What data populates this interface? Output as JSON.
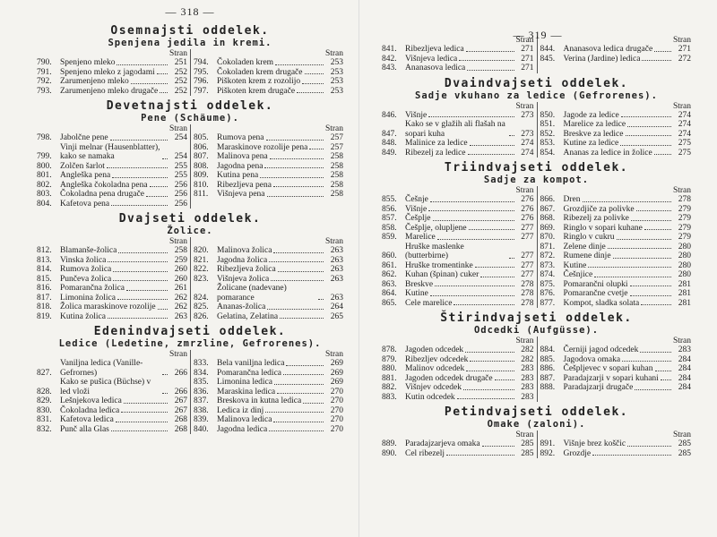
{
  "pages": [
    {
      "header": "— 318 —",
      "sections": [
        {
          "title": "Osemnajsti oddelek.",
          "subtitle": "Spenjena jedila in kremi.",
          "columns": [
            {
              "header": "Stran",
              "entries": [
                {
                  "num": "790.",
                  "name": "Spenjeno mleko",
                  "page": 251
                },
                {
                  "num": "791.",
                  "name": "Spenjeno mleko z jagodami",
                  "page": 252
                },
                {
                  "num": "792.",
                  "name": "Zarumenjeno mleko",
                  "page": 252
                },
                {
                  "num": "793.",
                  "name": "Zarumenjeno mleko drugače",
                  "page": 252
                }
              ]
            },
            {
              "header": "Stran",
              "entries": [
                {
                  "num": "794.",
                  "name": "Čokoladen krem",
                  "page": 253
                },
                {
                  "num": "795.",
                  "name": "Čokoladen krem drugače",
                  "page": 253
                },
                {
                  "num": "796.",
                  "name": "Piškoten krem z rozolijo",
                  "page": 253
                },
                {
                  "num": "797.",
                  "name": "Piškoten krem drugače",
                  "page": 253
                }
              ]
            }
          ]
        },
        {
          "title": "Devetnajsti oddelek.",
          "subtitle": "Pene (Schäume).",
          "columns": [
            {
              "header": "Stran",
              "entries": [
                {
                  "num": "798.",
                  "name": "Jabolčne pene",
                  "page": 254
                },
                {
                  "num": "799.",
                  "name": "Vinji melnar (Hausenblatter), kako se namaka",
                  "page": 254
                },
                {
                  "num": "800.",
                  "name": "Zolčen šarlot",
                  "page": 255
                },
                {
                  "num": "801.",
                  "name": "Angleška pena",
                  "page": 255
                },
                {
                  "num": "802.",
                  "name": "Angleška čokoladna pena",
                  "page": 256
                },
                {
                  "num": "803.",
                  "name": "Čokoladna pena drugače",
                  "page": 256
                },
                {
                  "num": "804.",
                  "name": "Kafetova pena",
                  "page": 256
                }
              ]
            },
            {
              "header": "Stran",
              "entries": [
                {
                  "num": "805.",
                  "name": "Rumova pena",
                  "page": 257
                },
                {
                  "num": "806.",
                  "name": "Maraskinove rozolije pena",
                  "page": 257
                },
                {
                  "num": "807.",
                  "name": "Malinova pena",
                  "page": 258
                },
                {
                  "num": "808.",
                  "name": "Jagodna pena",
                  "page": 258
                },
                {
                  "num": "809.",
                  "name": "Kutina pena",
                  "page": 258
                },
                {
                  "num": "810.",
                  "name": "Ribezljeva pena",
                  "page": 258
                },
                {
                  "num": "811.",
                  "name": "Višnjeva pena",
                  "page": 258
                }
              ]
            }
          ]
        },
        {
          "title": "Dvajseti oddelek.",
          "subtitle": "Žolice.",
          "columns": [
            {
              "header": "Stran",
              "entries": [
                {
                  "num": "812.",
                  "name": "Blamanše-žolica",
                  "page": 258
                },
                {
                  "num": "813.",
                  "name": "Vinska žolica",
                  "page": 259
                },
                {
                  "num": "814.",
                  "name": "Rumova žolica",
                  "page": 260
                },
                {
                  "num": "815.",
                  "name": "Punčeva žolica",
                  "page": 260
                },
                {
                  "num": "816.",
                  "name": "Pomarančna žolica",
                  "page": 261
                },
                {
                  "num": "817.",
                  "name": "Limonina žolica",
                  "page": 262
                },
                {
                  "num": "818.",
                  "name": "Žolica maraskinove rozolije",
                  "page": 262
                },
                {
                  "num": "819.",
                  "name": "Kutina žolica",
                  "page": 263
                }
              ]
            },
            {
              "header": "Stran",
              "entries": [
                {
                  "num": "820.",
                  "name": "Malinova žolica",
                  "page": 263
                },
                {
                  "num": "821.",
                  "name": "Jagodna žolica",
                  "page": 263
                },
                {
                  "num": "822.",
                  "name": "Ribezljeva žolica",
                  "page": 263
                },
                {
                  "num": "823.",
                  "name": "Višnjeva žolica",
                  "page": 263
                },
                {
                  "num": "824.",
                  "name": "Žolicane (nadevane) pomarance",
                  "page": 263
                },
                {
                  "num": "825.",
                  "name": "Ananas-žolica",
                  "page": 264
                },
                {
                  "num": "826.",
                  "name": "Gelatina, Zelatina",
                  "page": 265
                }
              ]
            }
          ]
        },
        {
          "title": "Edenindvajseti oddelek.",
          "subtitle": "Ledice (Ledetine, zmrzline, Gefrorenes).",
          "columns": [
            {
              "header": "Stran",
              "entries": [
                {
                  "num": "827.",
                  "name": "Vaniljna ledica (Vanille-Gefrornes)",
                  "page": 266
                },
                {
                  "num": "828.",
                  "name": "Kako se pušica (Büchse) v led vloži",
                  "page": 266
                },
                {
                  "num": "829.",
                  "name": "Lešnjekova ledica",
                  "page": 267
                },
                {
                  "num": "830.",
                  "name": "Čokoladna ledica",
                  "page": 267
                },
                {
                  "num": "831.",
                  "name": "Kafetova ledica",
                  "page": 268
                },
                {
                  "num": "832.",
                  "name": "Punč alla Glas",
                  "page": 268
                }
              ]
            },
            {
              "header": "Stran",
              "entries": [
                {
                  "num": "833.",
                  "name": "Bela vaniljna ledica",
                  "page": 269
                },
                {
                  "num": "834.",
                  "name": "Pomarančna ledica",
                  "page": 269
                },
                {
                  "num": "835.",
                  "name": "Limonina ledica",
                  "page": 269
                },
                {
                  "num": "836.",
                  "name": "Maraskina ledica",
                  "page": 270
                },
                {
                  "num": "837.",
                  "name": "Breskova in kutna ledica",
                  "page": 270
                },
                {
                  "num": "838.",
                  "name": "Ledica iz dinj",
                  "page": 270
                },
                {
                  "num": "839.",
                  "name": "Malinova ledica",
                  "page": 270
                },
                {
                  "num": "840.",
                  "name": "Jagodna ledica",
                  "page": 270
                }
              ]
            }
          ]
        }
      ]
    },
    {
      "header": "— 319 —",
      "sections": [
        {
          "columns": [
            {
              "header": "Stran",
              "entries": [
                {
                  "num": "841.",
                  "name": "Ribezljeva ledica",
                  "page": 271
                },
                {
                  "num": "842.",
                  "name": "Višnjeva ledica",
                  "page": 271
                },
                {
                  "num": "843.",
                  "name": "Ananasova ledica",
                  "page": 271
                }
              ]
            },
            {
              "header": "Stran",
              "entries": [
                {
                  "num": "844.",
                  "name": "Ananasova ledica drugače",
                  "page": 271
                },
                {
                  "num": "845.",
                  "name": "Verina (Jardine) ledica",
                  "page": 272
                }
              ]
            }
          ]
        },
        {
          "title": "Dvaindvajseti oddelek.",
          "subtitle": "Sadje vkuhano za ledice (Gefrorenes).",
          "columns": [
            {
              "header": "Stran",
              "entries": [
                {
                  "num": "846.",
                  "name": "Višnje",
                  "page": 273
                },
                {
                  "num": "847.",
                  "name": "Kako se v glažih ali flašah na sopari kuha",
                  "page": 273
                },
                {
                  "num": "848.",
                  "name": "Malinice za ledice",
                  "page": 274
                },
                {
                  "num": "849.",
                  "name": "Ribezelj za ledice",
                  "page": 274
                }
              ]
            },
            {
              "header": "Stran",
              "entries": [
                {
                  "num": "850.",
                  "name": "Jagode za ledice",
                  "page": 274
                },
                {
                  "num": "851.",
                  "name": "Marelice za ledice",
                  "page": 274
                },
                {
                  "num": "852.",
                  "name": "Breskve za ledice",
                  "page": 274
                },
                {
                  "num": "853.",
                  "name": "Kutine za ledice",
                  "page": 275
                },
                {
                  "num": "854.",
                  "name": "Ananas za ledice in žolice",
                  "page": 275
                }
              ]
            }
          ]
        },
        {
          "title": "Triindvajseti oddelek.",
          "subtitle": "Sadje za kompot.",
          "columns": [
            {
              "header": "Stran",
              "entries": [
                {
                  "num": "855.",
                  "name": "Češnje",
                  "page": 276
                },
                {
                  "num": "856.",
                  "name": "Višnje",
                  "page": 276
                },
                {
                  "num": "857.",
                  "name": "Češplje",
                  "page": 276
                },
                {
                  "num": "858.",
                  "name": "Češplje, olupljene",
                  "page": 277
                },
                {
                  "num": "859.",
                  "name": "Marelice",
                  "page": 277
                },
                {
                  "num": "860.",
                  "name": "Hruške maslenke (butterbirne)",
                  "page": 277
                },
                {
                  "num": "861.",
                  "name": "Hruške tromentinke",
                  "page": 277
                },
                {
                  "num": "862.",
                  "name": "Kuhan (špinan) cuker",
                  "page": 277
                },
                {
                  "num": "863.",
                  "name": "Breskve",
                  "page": 278
                },
                {
                  "num": "864.",
                  "name": "Kutine",
                  "page": 278
                },
                {
                  "num": "865.",
                  "name": "Cele marelice",
                  "page": 278
                }
              ]
            },
            {
              "header": "Stran",
              "entries": [
                {
                  "num": "866.",
                  "name": "Dren",
                  "page": 278
                },
                {
                  "num": "867.",
                  "name": "Grozdjiče za polivke",
                  "page": 279
                },
                {
                  "num": "868.",
                  "name": "Ribezelj za polivke",
                  "page": 279
                },
                {
                  "num": "869.",
                  "name": "Ringlo v sopari kuhane",
                  "page": 279
                },
                {
                  "num": "870.",
                  "name": "Ringlo v cukru",
                  "page": 279
                },
                {
                  "num": "871.",
                  "name": "Zelene dinje",
                  "page": 280
                },
                {
                  "num": "872.",
                  "name": "Rumene dinje",
                  "page": 280
                },
                {
                  "num": "873.",
                  "name": "Kutine",
                  "page": 280
                },
                {
                  "num": "874.",
                  "name": "Češnjice",
                  "page": 280
                },
                {
                  "num": "875.",
                  "name": "Pomarančni olupki",
                  "page": 281
                },
                {
                  "num": "876.",
                  "name": "Pomarančne cvetje",
                  "page": 281
                },
                {
                  "num": "877.",
                  "name": "Kompot, sladka solata",
                  "page": 281
                }
              ]
            }
          ]
        },
        {
          "title": "Štirindvajseti oddelek.",
          "subtitle": "Odcedki (Aufgüsse).",
          "columns": [
            {
              "header": "Stran",
              "entries": [
                {
                  "num": "878.",
                  "name": "Jagoden odcedek",
                  "page": 282
                },
                {
                  "num": "879.",
                  "name": "Ribezljev odcedek",
                  "page": 282
                },
                {
                  "num": "880.",
                  "name": "Malinov odcedek",
                  "page": 283
                },
                {
                  "num": "881.",
                  "name": "Jagoden odcedek drugače",
                  "page": 283
                },
                {
                  "num": "882.",
                  "name": "Višnjev odcedek",
                  "page": 283
                },
                {
                  "num": "883.",
                  "name": "Kutin odcedek",
                  "page": 283
                }
              ]
            },
            {
              "header": "Stran",
              "entries": [
                {
                  "num": "884.",
                  "name": "Černiji jagod odcedek",
                  "page": 283
                },
                {
                  "num": "885.",
                  "name": "Jagodova omaka",
                  "page": 284
                },
                {
                  "num": "886.",
                  "name": "Češpljevec v sopari kuhan",
                  "page": 284
                },
                {
                  "num": "887.",
                  "name": "Paradajzarji v sopari kuhani",
                  "page": 284
                },
                {
                  "num": "888.",
                  "name": "Paradajzarji drugače",
                  "page": 284
                }
              ]
            }
          ]
        },
        {
          "title": "Petindvajseti oddelek.",
          "subtitle": "Omake (zaloni).",
          "columns": [
            {
              "header": "Stran",
              "entries": [
                {
                  "num": "889.",
                  "name": "Paradajzarjeva omaka",
                  "page": 285
                },
                {
                  "num": "890.",
                  "name": "Cel ribezelj",
                  "page": 285
                }
              ]
            },
            {
              "header": "Stran",
              "entries": [
                {
                  "num": "891.",
                  "name": "Višnje brez koščic",
                  "page": 285
                },
                {
                  "num": "892.",
                  "name": "Grozdje",
                  "page": 285
                }
              ]
            }
          ]
        }
      ]
    }
  ]
}
